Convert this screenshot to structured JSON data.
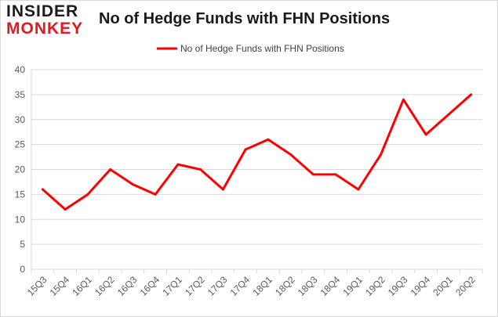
{
  "logo": {
    "line1": "INSIDER",
    "line2": "MONKEY"
  },
  "colors": {
    "series": "#ff0000",
    "grid": "#d9d9d9",
    "axis_text": "#595959",
    "logo_red": "#e0191f"
  },
  "chart_data": {
    "type": "line",
    "title": "No of Hedge Funds with FHN Positions",
    "xlabel": "",
    "ylabel": "",
    "categories": [
      "15Q3",
      "15Q4",
      "16Q1",
      "16Q2",
      "16Q3",
      "16Q4",
      "17Q1",
      "17Q2",
      "17Q3",
      "17Q4",
      "18Q1",
      "18Q2",
      "18Q3",
      "18Q4",
      "19Q1",
      "19Q2",
      "19Q3",
      "19Q4",
      "20Q1",
      "20Q2"
    ],
    "series": [
      {
        "name": "No of Hedge Funds with FHN Positions",
        "values": [
          16,
          12,
          15,
          20,
          17,
          15,
          21,
          20,
          16,
          24,
          26,
          23,
          19,
          19,
          16,
          23,
          34,
          27,
          31,
          35
        ]
      }
    ],
    "ylim": [
      0,
      40
    ],
    "yticks": [
      0,
      5,
      10,
      15,
      20,
      25,
      30,
      35,
      40
    ],
    "grid": true,
    "legend": "top-center"
  }
}
